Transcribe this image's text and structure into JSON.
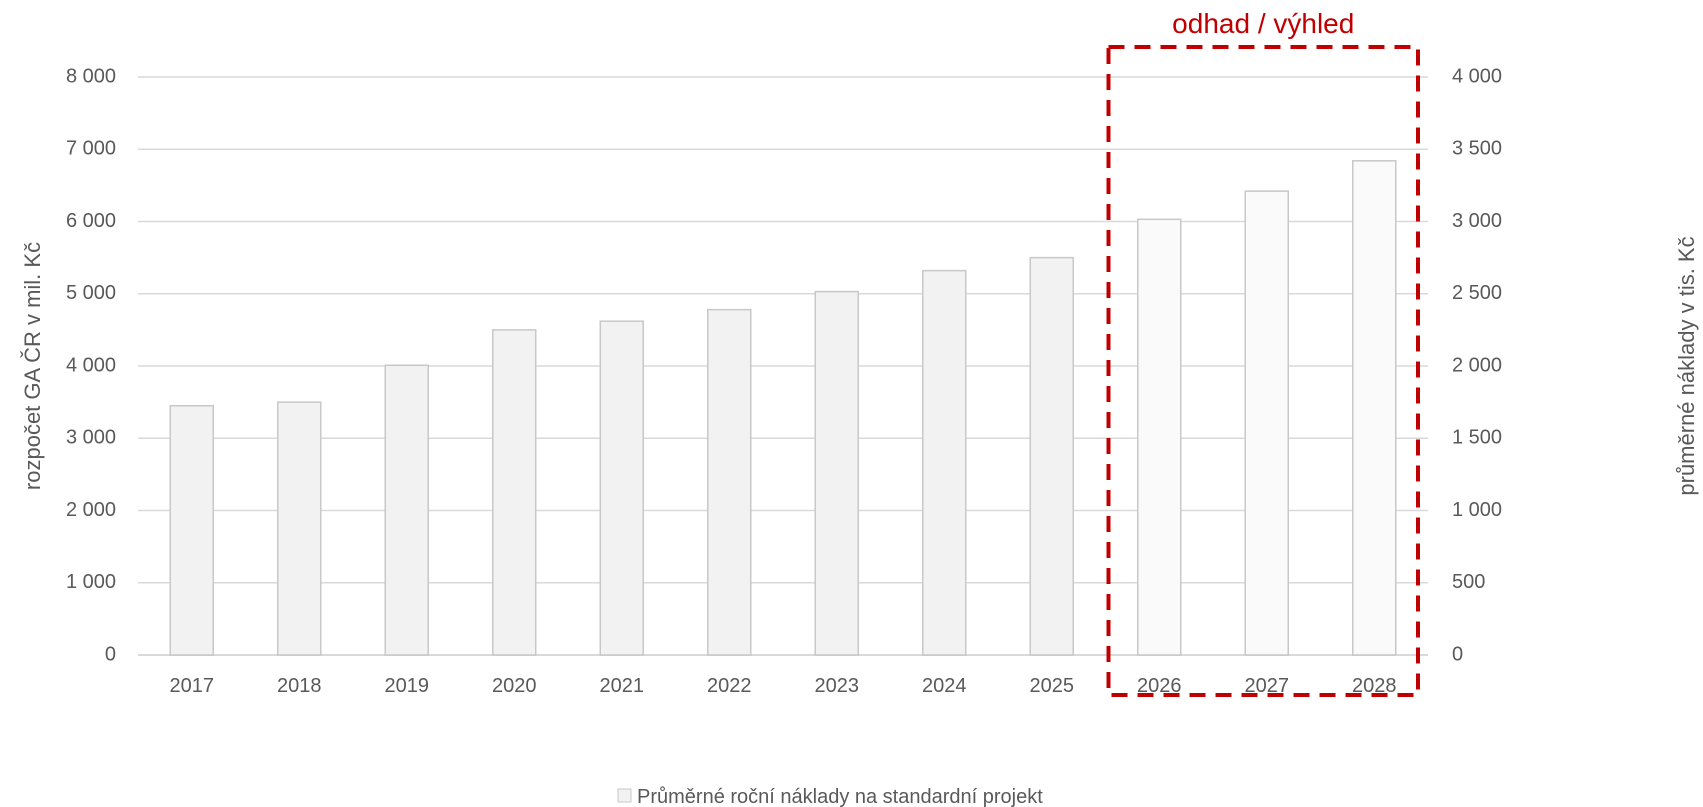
{
  "chart_data": {
    "type": "bar",
    "categories": [
      "2017",
      "2018",
      "2019",
      "2020",
      "2021",
      "2022",
      "2023",
      "2024",
      "2025",
      "2026",
      "2027",
      "2028"
    ],
    "series": [
      {
        "name": "Průměrné roční náklady na standardní projekt",
        "axis": "right",
        "values": [
          1725,
          1750,
          2005,
          2250,
          2310,
          2390,
          2515,
          2660,
          2750,
          3015,
          3210,
          3420
        ],
        "forecast_from_index": 9
      }
    ],
    "ylabel": "rozpočet GA ČR v mil. Kč",
    "ylabel_right": "průměrné náklady v tis. Kč",
    "ylim": [
      0,
      8000
    ],
    "ylim_right": [
      0,
      4000
    ],
    "yticks_left": [
      "0",
      "1 000",
      "2 000",
      "3 000",
      "4 000",
      "5 000",
      "6 000",
      "7 000",
      "8 000"
    ],
    "yticks_right": [
      "0",
      "500",
      "1 000",
      "1 500",
      "2 000",
      "2 500",
      "3 000",
      "3 500",
      "4 000"
    ],
    "grid": true,
    "legend_placement": "bottom-center",
    "annotation": {
      "text": "odhad / výhled",
      "from_category": "2026",
      "to_category": "2028",
      "color": "#c00000"
    },
    "colors": {
      "bar_fill": "#f2f2f2",
      "bar_fill_forecast": "#fafafa",
      "bar_stroke": "#c8c8c8",
      "grid": "#d9d9d9",
      "text": "#595959"
    }
  }
}
